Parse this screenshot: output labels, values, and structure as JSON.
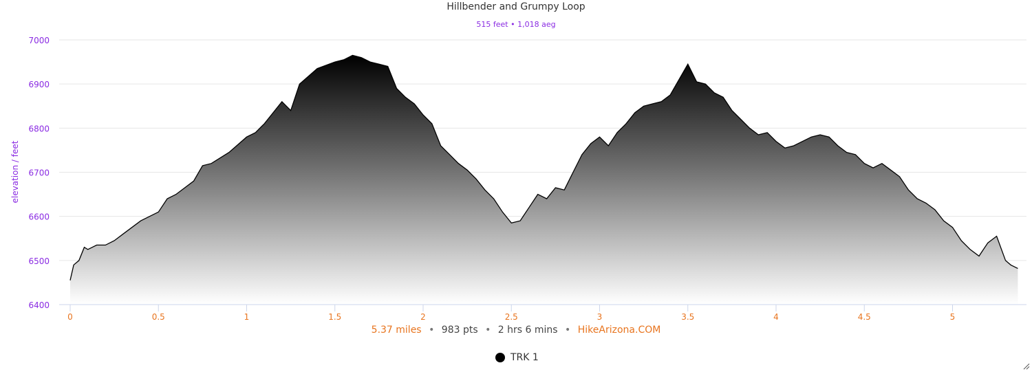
{
  "title": "Hillbender and Grumpy Loop",
  "subtitle": "515 feet • 1,018 aeg",
  "footer": {
    "distance": "5.37 miles",
    "sep1": "•",
    "points": "983 pts",
    "sep2": "•",
    "duration": "2 hrs 6 mins",
    "sep3": "•",
    "site": "HikeArizona.COM"
  },
  "legend": {
    "label": "TRK 1",
    "icon": "filled-circle"
  },
  "colors": {
    "axis_text": "#8a2be2",
    "x_text": "#e8741e",
    "line": "#000000",
    "grid": "#e6e6e6"
  },
  "chart_data": {
    "type": "area",
    "title": "Hillbender and Grumpy Loop",
    "subtitle": "515 feet • 1,018 aeg",
    "xlabel": "",
    "ylabel": "elevation / feet",
    "xlim": [
      0,
      5.37
    ],
    "ylim": [
      6400,
      7000
    ],
    "x_ticks": [
      "0",
      "0.5",
      "1",
      "1.5",
      "2",
      "2.5",
      "3",
      "3.5",
      "4",
      "4.5",
      "5"
    ],
    "y_ticks": [
      "6400",
      "6500",
      "6600",
      "6700",
      "6800",
      "6900",
      "7000"
    ],
    "grid": true,
    "legend_position": "bottom-center",
    "series": [
      {
        "name": "TRK 1",
        "x": [
          0,
          0.02,
          0.05,
          0.08,
          0.1,
          0.15,
          0.2,
          0.25,
          0.3,
          0.4,
          0.5,
          0.55,
          0.6,
          0.7,
          0.75,
          0.8,
          0.9,
          1.0,
          1.05,
          1.1,
          1.15,
          1.2,
          1.25,
          1.3,
          1.4,
          1.5,
          1.55,
          1.6,
          1.65,
          1.7,
          1.75,
          1.8,
          1.85,
          1.9,
          1.95,
          2.0,
          2.05,
          2.1,
          2.15,
          2.2,
          2.25,
          2.3,
          2.35,
          2.4,
          2.45,
          2.5,
          2.55,
          2.6,
          2.65,
          2.7,
          2.75,
          2.8,
          2.85,
          2.9,
          2.95,
          3.0,
          3.05,
          3.1,
          3.15,
          3.2,
          3.25,
          3.3,
          3.35,
          3.4,
          3.45,
          3.5,
          3.55,
          3.6,
          3.65,
          3.7,
          3.75,
          3.8,
          3.85,
          3.9,
          3.95,
          4.0,
          4.05,
          4.1,
          4.15,
          4.2,
          4.25,
          4.3,
          4.35,
          4.4,
          4.45,
          4.5,
          4.55,
          4.6,
          4.65,
          4.7,
          4.75,
          4.8,
          4.85,
          4.9,
          4.95,
          5.0,
          5.05,
          5.1,
          5.15,
          5.2,
          5.25,
          5.3,
          5.33,
          5.37
        ],
        "y": [
          6455,
          6490,
          6500,
          6530,
          6525,
          6535,
          6535,
          6545,
          6560,
          6590,
          6610,
          6640,
          6650,
          6680,
          6715,
          6720,
          6745,
          6780,
          6790,
          6810,
          6835,
          6860,
          6840,
          6900,
          6935,
          6950,
          6955,
          6965,
          6960,
          6950,
          6945,
          6940,
          6890,
          6870,
          6855,
          6830,
          6810,
          6760,
          6740,
          6720,
          6705,
          6685,
          6660,
          6640,
          6610,
          6585,
          6590,
          6620,
          6650,
          6640,
          6665,
          6660,
          6700,
          6740,
          6765,
          6780,
          6760,
          6790,
          6810,
          6835,
          6850,
          6855,
          6860,
          6875,
          6910,
          6945,
          6905,
          6900,
          6880,
          6870,
          6840,
          6820,
          6800,
          6785,
          6790,
          6770,
          6755,
          6760,
          6770,
          6780,
          6785,
          6780,
          6760,
          6745,
          6740,
          6720,
          6710,
          6720,
          6705,
          6690,
          6660,
          6640,
          6630,
          6615,
          6590,
          6575,
          6545,
          6525,
          6510,
          6540,
          6555,
          6500,
          6490,
          6482
        ]
      }
    ]
  }
}
